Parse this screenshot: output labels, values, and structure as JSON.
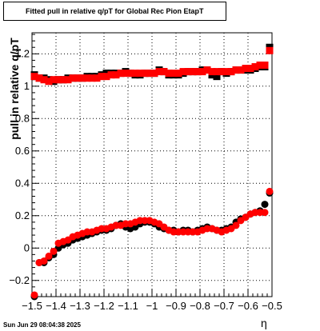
{
  "chart_data": {
    "type": "scatter",
    "title": "Fitted pull in relative q/pT for Global Rec Pion EtapT",
    "xlabel": "η",
    "ylabel": "pull in relative q/pT",
    "xlim": [
      -1.5,
      -0.5
    ],
    "ylim": [
      -0.3,
      1.33
    ],
    "grid": true,
    "x_ticks": [
      "−1.5",
      "−1.4",
      "−1.3",
      "−1.2",
      "−1.1",
      "−1",
      "−0.9",
      "−0.8",
      "−0.7",
      "−0.6",
      "−0.5"
    ],
    "y_ticks": [
      "−0.2",
      "0",
      "0.2",
      "0.4",
      "0.6",
      "0.8",
      "1",
      "1.2"
    ],
    "series": [
      {
        "color": "#000000",
        "marker": "square",
        "x": [
          -1.49,
          -1.47,
          -1.45,
          -1.43,
          -1.41,
          -1.39,
          -1.37,
          -1.35,
          -1.33,
          -1.31,
          -1.29,
          -1.27,
          -1.25,
          -1.23,
          -1.21,
          -1.19,
          -1.17,
          -1.15,
          -1.13,
          -1.11,
          -1.09,
          -1.07,
          -1.05,
          -1.03,
          -1.01,
          -0.99,
          -0.97,
          -0.95,
          -0.93,
          -0.91,
          -0.89,
          -0.87,
          -0.85,
          -0.83,
          -0.81,
          -0.79,
          -0.77,
          -0.75,
          -0.73,
          -0.71,
          -0.69,
          -0.67,
          -0.65,
          -0.63,
          -0.61,
          -0.59,
          -0.57,
          -0.55,
          -0.53,
          -0.51
        ],
        "y": [
          1.07,
          1.05,
          1.05,
          1.04,
          1.03,
          1.04,
          1.04,
          1.05,
          1.05,
          1.05,
          1.05,
          1.06,
          1.06,
          1.06,
          1.07,
          1.08,
          1.08,
          1.08,
          1.08,
          1.09,
          1.08,
          1.07,
          1.07,
          1.08,
          1.08,
          1.08,
          1.1,
          1.09,
          1.07,
          1.07,
          1.07,
          1.08,
          1.09,
          1.09,
          1.09,
          1.1,
          1.1,
          1.07,
          1.06,
          1.09,
          1.08,
          1.09,
          1.1,
          1.1,
          1.1,
          1.1,
          1.11,
          1.12,
          1.12,
          1.24
        ]
      },
      {
        "color": "#000000",
        "marker": "circle",
        "x": [
          -1.49,
          -1.47,
          -1.45,
          -1.43,
          -1.41,
          -1.39,
          -1.37,
          -1.35,
          -1.33,
          -1.31,
          -1.29,
          -1.27,
          -1.25,
          -1.23,
          -1.21,
          -1.19,
          -1.17,
          -1.15,
          -1.13,
          -1.11,
          -1.09,
          -1.07,
          -1.05,
          -1.03,
          -1.01,
          -0.99,
          -0.97,
          -0.95,
          -0.93,
          -0.91,
          -0.89,
          -0.87,
          -0.85,
          -0.83,
          -0.81,
          -0.79,
          -0.77,
          -0.75,
          -0.73,
          -0.71,
          -0.69,
          -0.67,
          -0.65,
          -0.63,
          -0.61,
          -0.59,
          -0.57,
          -0.55,
          -0.53,
          -0.51
        ],
        "y": [
          -0.3,
          -0.09,
          -0.09,
          -0.06,
          -0.04,
          0.0,
          0.02,
          0.03,
          0.05,
          0.06,
          0.07,
          0.08,
          0.09,
          0.1,
          0.11,
          0.11,
          0.12,
          0.14,
          0.15,
          0.13,
          0.12,
          0.13,
          0.15,
          0.16,
          0.16,
          0.15,
          0.13,
          0.12,
          0.11,
          0.11,
          0.1,
          0.11,
          0.11,
          0.1,
          0.11,
          0.12,
          0.13,
          0.12,
          0.11,
          0.11,
          0.12,
          0.13,
          0.16,
          0.18,
          0.19,
          0.21,
          0.22,
          0.23,
          0.27,
          0.34
        ]
      },
      {
        "color": "#ff0000",
        "marker": "square",
        "x": [
          -1.49,
          -1.47,
          -1.45,
          -1.43,
          -1.41,
          -1.39,
          -1.37,
          -1.35,
          -1.33,
          -1.31,
          -1.29,
          -1.27,
          -1.25,
          -1.23,
          -1.21,
          -1.19,
          -1.17,
          -1.15,
          -1.13,
          -1.11,
          -1.09,
          -1.07,
          -1.05,
          -1.03,
          -1.01,
          -0.99,
          -0.97,
          -0.95,
          -0.93,
          -0.91,
          -0.89,
          -0.87,
          -0.85,
          -0.83,
          -0.81,
          -0.79,
          -0.77,
          -0.75,
          -0.73,
          -0.71,
          -0.69,
          -0.67,
          -0.65,
          -0.63,
          -0.61,
          -0.59,
          -0.57,
          -0.55,
          -0.53,
          -0.51
        ],
        "y": [
          1.06,
          1.05,
          1.04,
          1.03,
          1.04,
          1.04,
          1.04,
          1.04,
          1.05,
          1.05,
          1.05,
          1.05,
          1.05,
          1.05,
          1.06,
          1.06,
          1.07,
          1.07,
          1.08,
          1.08,
          1.08,
          1.08,
          1.08,
          1.08,
          1.08,
          1.08,
          1.09,
          1.09,
          1.08,
          1.08,
          1.08,
          1.09,
          1.09,
          1.09,
          1.09,
          1.09,
          1.1,
          1.09,
          1.09,
          1.09,
          1.09,
          1.09,
          1.1,
          1.1,
          1.11,
          1.11,
          1.12,
          1.13,
          1.13,
          1.22
        ]
      },
      {
        "color": "#ff0000",
        "marker": "circle",
        "x": [
          -1.49,
          -1.47,
          -1.45,
          -1.43,
          -1.41,
          -1.39,
          -1.37,
          -1.35,
          -1.33,
          -1.31,
          -1.29,
          -1.27,
          -1.25,
          -1.23,
          -1.21,
          -1.19,
          -1.17,
          -1.15,
          -1.13,
          -1.11,
          -1.09,
          -1.07,
          -1.05,
          -1.03,
          -1.01,
          -0.99,
          -0.97,
          -0.95,
          -0.93,
          -0.91,
          -0.89,
          -0.87,
          -0.85,
          -0.83,
          -0.81,
          -0.79,
          -0.77,
          -0.75,
          -0.73,
          -0.71,
          -0.69,
          -0.67,
          -0.65,
          -0.63,
          -0.61,
          -0.59,
          -0.57,
          -0.55,
          -0.53,
          -0.51
        ],
        "y": [
          -0.29,
          -0.09,
          -0.08,
          -0.05,
          -0.02,
          0.03,
          0.04,
          0.05,
          0.07,
          0.08,
          0.09,
          0.1,
          0.1,
          0.11,
          0.12,
          0.12,
          0.13,
          0.14,
          0.14,
          0.15,
          0.15,
          0.16,
          0.17,
          0.17,
          0.17,
          0.16,
          0.15,
          0.13,
          0.11,
          0.1,
          0.1,
          0.1,
          0.1,
          0.1,
          0.1,
          0.11,
          0.12,
          0.12,
          0.11,
          0.1,
          0.11,
          0.12,
          0.14,
          0.17,
          0.19,
          0.21,
          0.22,
          0.22,
          0.22,
          0.35
        ]
      }
    ]
  },
  "footer": {
    "datestamp": "Sun Jun 29 08:04:38 2025"
  }
}
